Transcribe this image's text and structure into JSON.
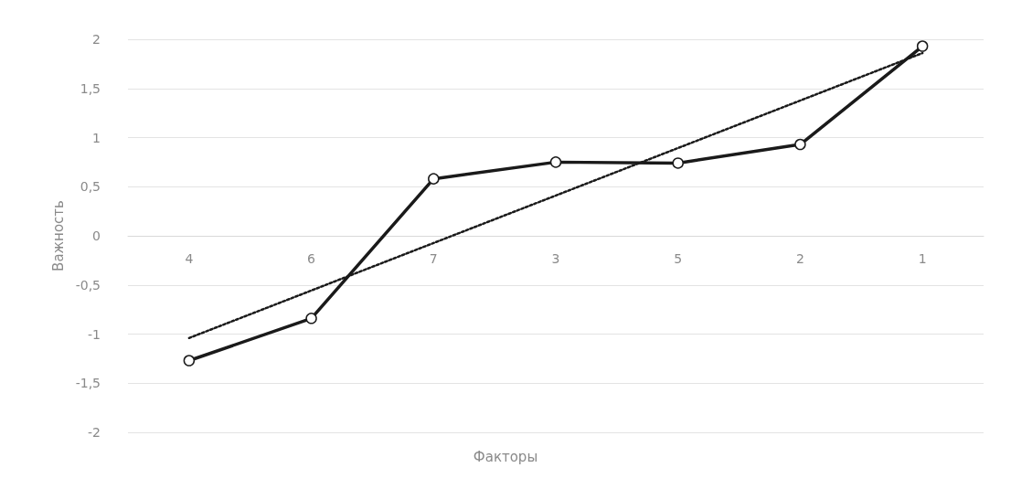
{
  "chart_data": {
    "type": "line",
    "xlabel": "Факторы",
    "ylabel": "Важность",
    "categories": [
      "4",
      "6",
      "7",
      "3",
      "5",
      "2",
      "1"
    ],
    "series": [
      {
        "color": "#1a1a1a",
        "values": [
          -1.27,
          -0.84,
          0.58,
          0.75,
          0.74,
          0.93,
          1.93
        ],
        "marker": "circle",
        "line_style": "solid"
      },
      {
        "type": "line",
        "color": "#1a1a1a",
        "x": [
          "4",
          "1"
        ],
        "values": [
          -1.04,
          1.86
        ],
        "marker": "none",
        "line_style": "dotted"
      }
    ],
    "ylim": [
      -2,
      2
    ],
    "yticks": [
      -2,
      {
        "value": -1.5,
        "label": "-1,5"
      },
      -1,
      {
        "value": -0.5,
        "label": "-0,5"
      },
      0,
      {
        "value": 0.5,
        "label": "0,5"
      },
      1,
      {
        "value": 1.5,
        "label": "1,5"
      },
      2
    ],
    "grid": "y"
  }
}
